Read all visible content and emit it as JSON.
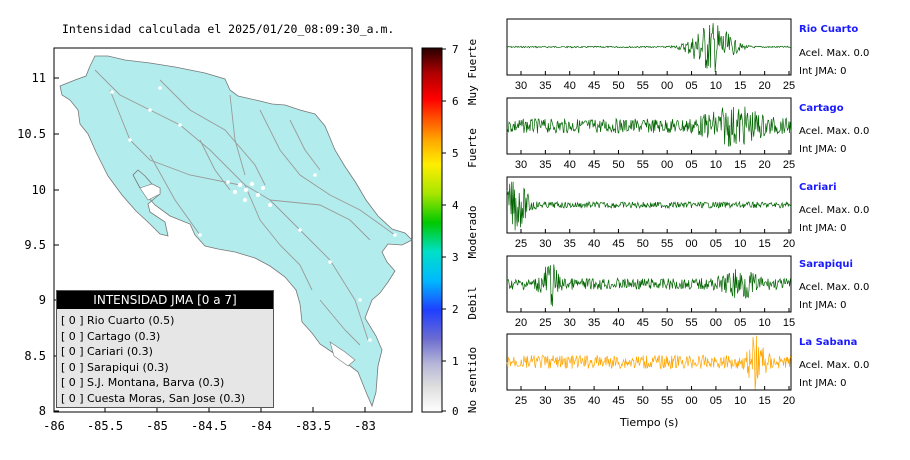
{
  "map": {
    "title": "Intensidad calculada el 2025/01/20_08:09:30_a.m.",
    "x_ticks": [
      "-86",
      "-85.5",
      "-85",
      "-84.5",
      "-84",
      "-83.5",
      "-83"
    ],
    "y_ticks": [
      "11",
      "10.5",
      "10",
      "9.5",
      "9",
      "8.5",
      "8"
    ],
    "land_color": "#b3ecec",
    "colorbar": {
      "ticks": [
        "0",
        "1",
        "2",
        "3",
        "4",
        "5",
        "6",
        "7"
      ],
      "labels": [
        "No sentido",
        "Debil",
        "Moderado",
        "Fuerte",
        "Muy Fuerte"
      ]
    },
    "legend": {
      "title": "INTENSIDAD JMA [0 a 7]",
      "items": [
        {
          "bracket": "[ 0 ]",
          "label": "Rio Cuarto (0.5)"
        },
        {
          "bracket": "[ 0 ]",
          "label": "Cartago (0.3)"
        },
        {
          "bracket": "[ 0 ]",
          "label": "Cariari (0.3)"
        },
        {
          "bracket": "[ 0 ]",
          "label": "Sarapiqui (0.3)"
        },
        {
          "bracket": "[ 0 ]",
          "label": "S.J. Montana, Barva (0.3)"
        },
        {
          "bracket": "[ 0 ]",
          "label": "Cuesta Moras, San Jose (0.3)"
        }
      ]
    }
  },
  "waveforms": {
    "xlabel": "Tiempo (s)",
    "stations": [
      {
        "name": "Rio Cuarto",
        "acel": "Acel. Max. 0.0",
        "int": "Int JMA: 0",
        "color": "#006400",
        "ticks": [
          "30",
          "35",
          "40",
          "45",
          "50",
          "55",
          "00",
          "05",
          "10",
          "15",
          "20",
          "25"
        ]
      },
      {
        "name": "Cartago",
        "acel": "Acel. Max. 0.0",
        "int": "Int JMA: 0",
        "color": "#006400",
        "ticks": [
          "30",
          "35",
          "40",
          "45",
          "50",
          "55",
          "00",
          "05",
          "10",
          "15",
          "20",
          "25"
        ]
      },
      {
        "name": "Cariari",
        "acel": "Acel. Max. 0.0",
        "int": "Int JMA: 0",
        "color": "#006400",
        "ticks": [
          "25",
          "30",
          "35",
          "40",
          "45",
          "50",
          "55",
          "00",
          "05",
          "10",
          "15",
          "20"
        ]
      },
      {
        "name": "Sarapiqui",
        "acel": "Acel. Max. 0.0",
        "int": "Int JMA: 0",
        "color": "#006400",
        "ticks": [
          "20",
          "25",
          "30",
          "35",
          "40",
          "45",
          "50",
          "55",
          "00",
          "05",
          "10",
          "15"
        ]
      },
      {
        "name": "La Sabana",
        "acel": "Acel. Max. 0.0",
        "int": "Int JMA: 0",
        "color": "#ffa500",
        "ticks": [
          "25",
          "30",
          "35",
          "40",
          "45",
          "50",
          "55",
          "00",
          "05",
          "10",
          "15",
          "20"
        ]
      }
    ]
  }
}
